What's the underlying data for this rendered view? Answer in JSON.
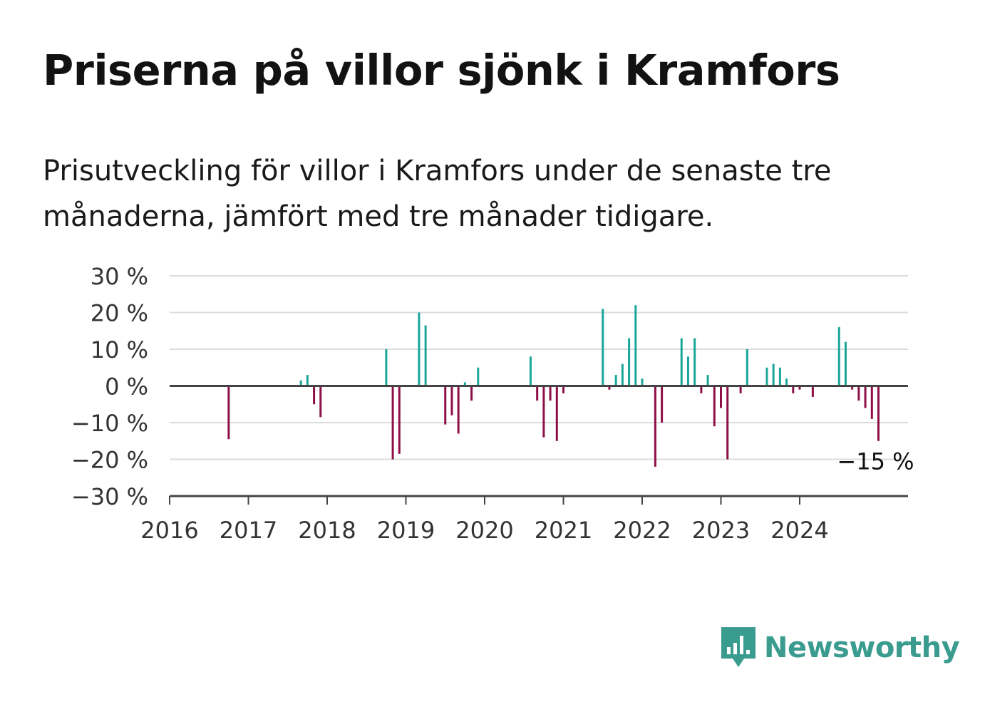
{
  "title": "Priserna på villor sjönk i Kramfors",
  "subtitle": "Prisutveckling för villor i Kramfors under de senaste tre månaderna, jämfört med tre månader tidigare.",
  "brand": {
    "name": "Newsworthy",
    "color": "#3a9b8f",
    "icon": "newsworthy-logo-icon"
  },
  "colors": {
    "positive": "#19a69a",
    "negative": "#8e0f47",
    "grid": "#dcdcdc",
    "axis": "#444444",
    "text": "#333333"
  },
  "chart_data": {
    "type": "bar",
    "ylim": [
      -30,
      30
    ],
    "yticks": [
      30,
      20,
      10,
      0,
      -10,
      -20,
      -30
    ],
    "ytick_labels": [
      "30 %",
      "20 %",
      "10 %",
      "0 %",
      "−10 %",
      "−20 %",
      "−30 %"
    ],
    "xlim": [
      "2016-01",
      "2025-06"
    ],
    "xtick_labels": [
      "2016",
      "2017",
      "2018",
      "2019",
      "2020",
      "2021",
      "2022",
      "2023",
      "2024"
    ],
    "grid": true,
    "last_value_label": "−15 %",
    "series": [
      {
        "values": [
          {
            "x": "2016-10",
            "y": -14.5
          },
          {
            "x": "2017-09",
            "y": 1.5
          },
          {
            "x": "2017-10",
            "y": 3
          },
          {
            "x": "2017-11",
            "y": -5
          },
          {
            "x": "2017-12",
            "y": -8.5
          },
          {
            "x": "2018-10",
            "y": 10
          },
          {
            "x": "2018-11",
            "y": -20
          },
          {
            "x": "2018-12",
            "y": -18.5
          },
          {
            "x": "2019-03",
            "y": 20
          },
          {
            "x": "2019-04",
            "y": 16.5
          },
          {
            "x": "2019-07",
            "y": -10.5
          },
          {
            "x": "2019-08",
            "y": -8
          },
          {
            "x": "2019-09",
            "y": -13
          },
          {
            "x": "2019-10",
            "y": 1
          },
          {
            "x": "2019-11",
            "y": -4
          },
          {
            "x": "2019-12",
            "y": 5
          },
          {
            "x": "2020-08",
            "y": 8
          },
          {
            "x": "2020-09",
            "y": -4
          },
          {
            "x": "2020-10",
            "y": -14
          },
          {
            "x": "2020-11",
            "y": -4
          },
          {
            "x": "2020-12",
            "y": -15
          },
          {
            "x": "2021-01",
            "y": -2
          },
          {
            "x": "2021-07",
            "y": 21
          },
          {
            "x": "2021-08",
            "y": -1
          },
          {
            "x": "2021-09",
            "y": 3
          },
          {
            "x": "2021-10",
            "y": 6
          },
          {
            "x": "2021-11",
            "y": 13
          },
          {
            "x": "2021-12",
            "y": 22
          },
          {
            "x": "2022-01",
            "y": 2
          },
          {
            "x": "2022-03",
            "y": -22
          },
          {
            "x": "2022-04",
            "y": -10
          },
          {
            "x": "2022-07",
            "y": 13
          },
          {
            "x": "2022-08",
            "y": 8
          },
          {
            "x": "2022-09",
            "y": 13
          },
          {
            "x": "2022-10",
            "y": -2
          },
          {
            "x": "2022-11",
            "y": 3
          },
          {
            "x": "2022-12",
            "y": -11
          },
          {
            "x": "2023-01",
            "y": -6
          },
          {
            "x": "2023-02",
            "y": -20
          },
          {
            "x": "2023-04",
            "y": -2
          },
          {
            "x": "2023-05",
            "y": 10
          },
          {
            "x": "2023-08",
            "y": 5
          },
          {
            "x": "2023-09",
            "y": 6
          },
          {
            "x": "2023-10",
            "y": 5
          },
          {
            "x": "2023-11",
            "y": 2
          },
          {
            "x": "2023-12",
            "y": -2
          },
          {
            "x": "2024-01",
            "y": -1
          },
          {
            "x": "2024-03",
            "y": -3
          },
          {
            "x": "2024-07",
            "y": 16
          },
          {
            "x": "2024-08",
            "y": 12
          },
          {
            "x": "2024-09",
            "y": -1
          },
          {
            "x": "2024-10",
            "y": -4
          },
          {
            "x": "2024-11",
            "y": -6
          },
          {
            "x": "2024-12",
            "y": -9
          },
          {
            "x": "2025-01",
            "y": -15
          }
        ]
      }
    ]
  }
}
